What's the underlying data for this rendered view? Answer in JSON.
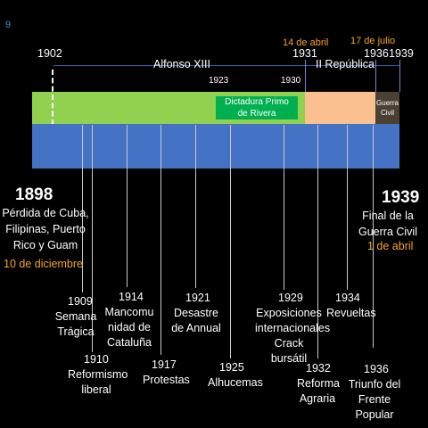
{
  "slide": {
    "number": "9"
  },
  "top_labels": {
    "y1902": "1902",
    "alfonso": "Alfonso XIII",
    "y1923": "1923",
    "y1930": "1930",
    "apr14": "14 de abril",
    "y1931": "1931",
    "republica": "II República",
    "jul17": "17 de julio",
    "y1936": "1936",
    "y1939": "1939"
  },
  "bars": {
    "dictadura": "Dictadura Primo de Rivera",
    "guerra": "Guerra Civil",
    "colors": {
      "alfonso": "#92d050",
      "dictadura": "#00b050",
      "republica": "#fac090",
      "guerra": "#4a4033",
      "timeline": "#4472c4",
      "orange": "#f5a623"
    }
  },
  "start": {
    "year": "1898",
    "text": "Pérdida de Cuba, Filipinas, Puerto Rico y Guam",
    "date": "10 de diciembre"
  },
  "end": {
    "year": "1939",
    "text": "Final de la Guerra Civil",
    "date": "1 de abril"
  },
  "events": [
    {
      "year": "1909",
      "label": "Semana Trágica"
    },
    {
      "year": "1910",
      "label": "Reformismo liberal"
    },
    {
      "year": "1914",
      "label": "Mancomunidad de Cataluña"
    },
    {
      "year": "1917",
      "label": "Protestas"
    },
    {
      "year": "1921",
      "label": "Desastre de Annual"
    },
    {
      "year": "1925",
      "label": "Alhucemas"
    },
    {
      "year": "1929",
      "label": "Exposiciones internacionales Crack bursátil"
    },
    {
      "year": "1932",
      "label": "Reforma Agraria"
    },
    {
      "year": "1934",
      "label": "Revueltas"
    },
    {
      "year": "1936",
      "label": "Triunfo del Frente Popular"
    }
  ]
}
